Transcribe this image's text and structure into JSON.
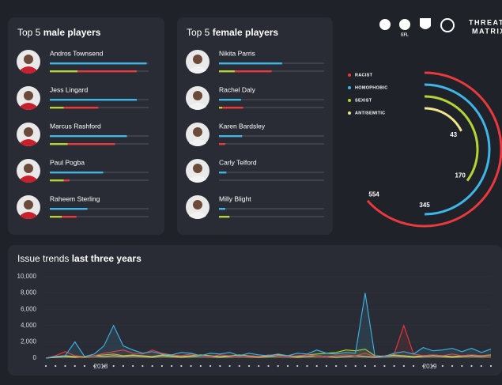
{
  "male_panel": {
    "title_prefix": "Top 5 ",
    "title_emphasis": "male players",
    "xlim": [
      0,
      100
    ],
    "bar_colors": [
      "#3fb6e8",
      "#b5d334",
      "#e8393d"
    ],
    "players": [
      {
        "name": "Andros Townsend",
        "bars": [
          98,
          28,
          60
        ]
      },
      {
        "name": "Jess Lingard",
        "bars": [
          88,
          14,
          35
        ]
      },
      {
        "name": "Marcus Rashford",
        "bars": [
          78,
          18,
          48
        ]
      },
      {
        "name": "Paul Pogba",
        "bars": [
          54,
          14,
          6
        ]
      },
      {
        "name": "Raheem Sterling",
        "bars": [
          38,
          12,
          15
        ]
      }
    ]
  },
  "female_panel": {
    "title_prefix": "Top 5 ",
    "title_emphasis": "female players",
    "xlim": [
      0,
      100
    ],
    "bar_colors": [
      "#3fb6e8",
      "#b5d334",
      "#e8393d"
    ],
    "players": [
      {
        "name": "Nikita Parris",
        "bars": [
          60,
          15,
          35
        ]
      },
      {
        "name": "Rachel Daly",
        "bars": [
          21,
          3,
          20
        ]
      },
      {
        "name": "Karen Bardsley",
        "bars": [
          22,
          0,
          6
        ]
      },
      {
        "name": "Carly Telford",
        "bars": [
          7,
          0,
          0
        ]
      },
      {
        "name": "Milly Blight",
        "bars": [
          6,
          10,
          0
        ]
      }
    ]
  },
  "logos": {
    "efl": "EFL",
    "brand_top": "THREAT",
    "brand_bottom": "MATRIX"
  },
  "radial": {
    "type": "radial-bar",
    "series": [
      {
        "name": "RACIST",
        "color": "#e8393d",
        "value": 554
      },
      {
        "name": "HOMOPHOBIC",
        "color": "#3fb6e8",
        "value": 345
      },
      {
        "name": "SEXIST",
        "color": "#b5d334",
        "value": 170
      },
      {
        "name": "ANTISEMITIC",
        "color": "#f2e58a",
        "value": 43
      }
    ]
  },
  "trends": {
    "type": "line",
    "title_prefix": "Issue trends ",
    "title_emphasis": "last three years",
    "categories": [
      null,
      null,
      null,
      null,
      null,
      null,
      "2018",
      null,
      null,
      null,
      null,
      null,
      null,
      null,
      null,
      null,
      null,
      null,
      null,
      null,
      null,
      null,
      null,
      null,
      null,
      null,
      null,
      null,
      null,
      null,
      null,
      null,
      null,
      null,
      null,
      null,
      null,
      null,
      null,
      null,
      "2019",
      null,
      null,
      null,
      null,
      null,
      null
    ],
    "ylim": [
      0,
      10000
    ],
    "yticks": [
      {
        "value": 10000,
        "label": "10,000"
      },
      {
        "value": 8000,
        "label": "8,000"
      },
      {
        "value": 6000,
        "label": "6,000"
      },
      {
        "value": 4000,
        "label": "4,000"
      },
      {
        "value": 2000,
        "label": "2,000"
      },
      0
    ],
    "series": [
      {
        "color": "#f2e58a",
        "values": [
          0,
          100,
          200,
          100,
          200,
          300,
          200,
          300,
          200,
          300,
          200,
          100,
          300,
          200,
          100,
          200,
          300,
          200,
          100,
          200,
          300,
          200,
          100,
          200,
          300,
          200,
          100,
          200,
          300,
          200,
          100,
          200,
          300,
          200,
          100,
          200,
          300,
          200,
          100,
          200,
          300,
          200,
          100,
          200,
          300,
          200,
          300
        ]
      },
      {
        "color": "#b5d334",
        "values": [
          0,
          200,
          300,
          200,
          100,
          300,
          400,
          500,
          300,
          400,
          300,
          200,
          400,
          300,
          200,
          300,
          400,
          300,
          200,
          300,
          400,
          300,
          200,
          300,
          400,
          300,
          200,
          400,
          500,
          600,
          700,
          1000,
          900,
          1100,
          300,
          200,
          400,
          300,
          200,
          300,
          400,
          300,
          200,
          300,
          400,
          300,
          400
        ]
      },
      {
        "color": "#e8393d",
        "values": [
          0,
          300,
          800,
          300,
          200,
          300,
          600,
          800,
          1000,
          600,
          500,
          1000,
          600,
          400,
          300,
          500,
          300,
          200,
          400,
          300,
          200,
          300,
          200,
          400,
          300,
          200,
          300,
          400,
          300,
          200,
          300,
          400,
          300,
          600,
          200,
          300,
          500,
          4000,
          500,
          300,
          400,
          300,
          500,
          300,
          400,
          300,
          300
        ]
      },
      {
        "color": "#3fb6e8",
        "values": [
          0,
          200,
          300,
          2000,
          200,
          500,
          1500,
          4000,
          1500,
          1000,
          600,
          800,
          500,
          400,
          700,
          600,
          300,
          600,
          500,
          700,
          300,
          600,
          400,
          300,
          500,
          300,
          600,
          500,
          1000,
          600,
          500,
          700,
          600,
          8000,
          300,
          200,
          600,
          800,
          500,
          1300,
          900,
          1000,
          1200,
          800,
          1200,
          700,
          1100
        ]
      }
    ]
  }
}
